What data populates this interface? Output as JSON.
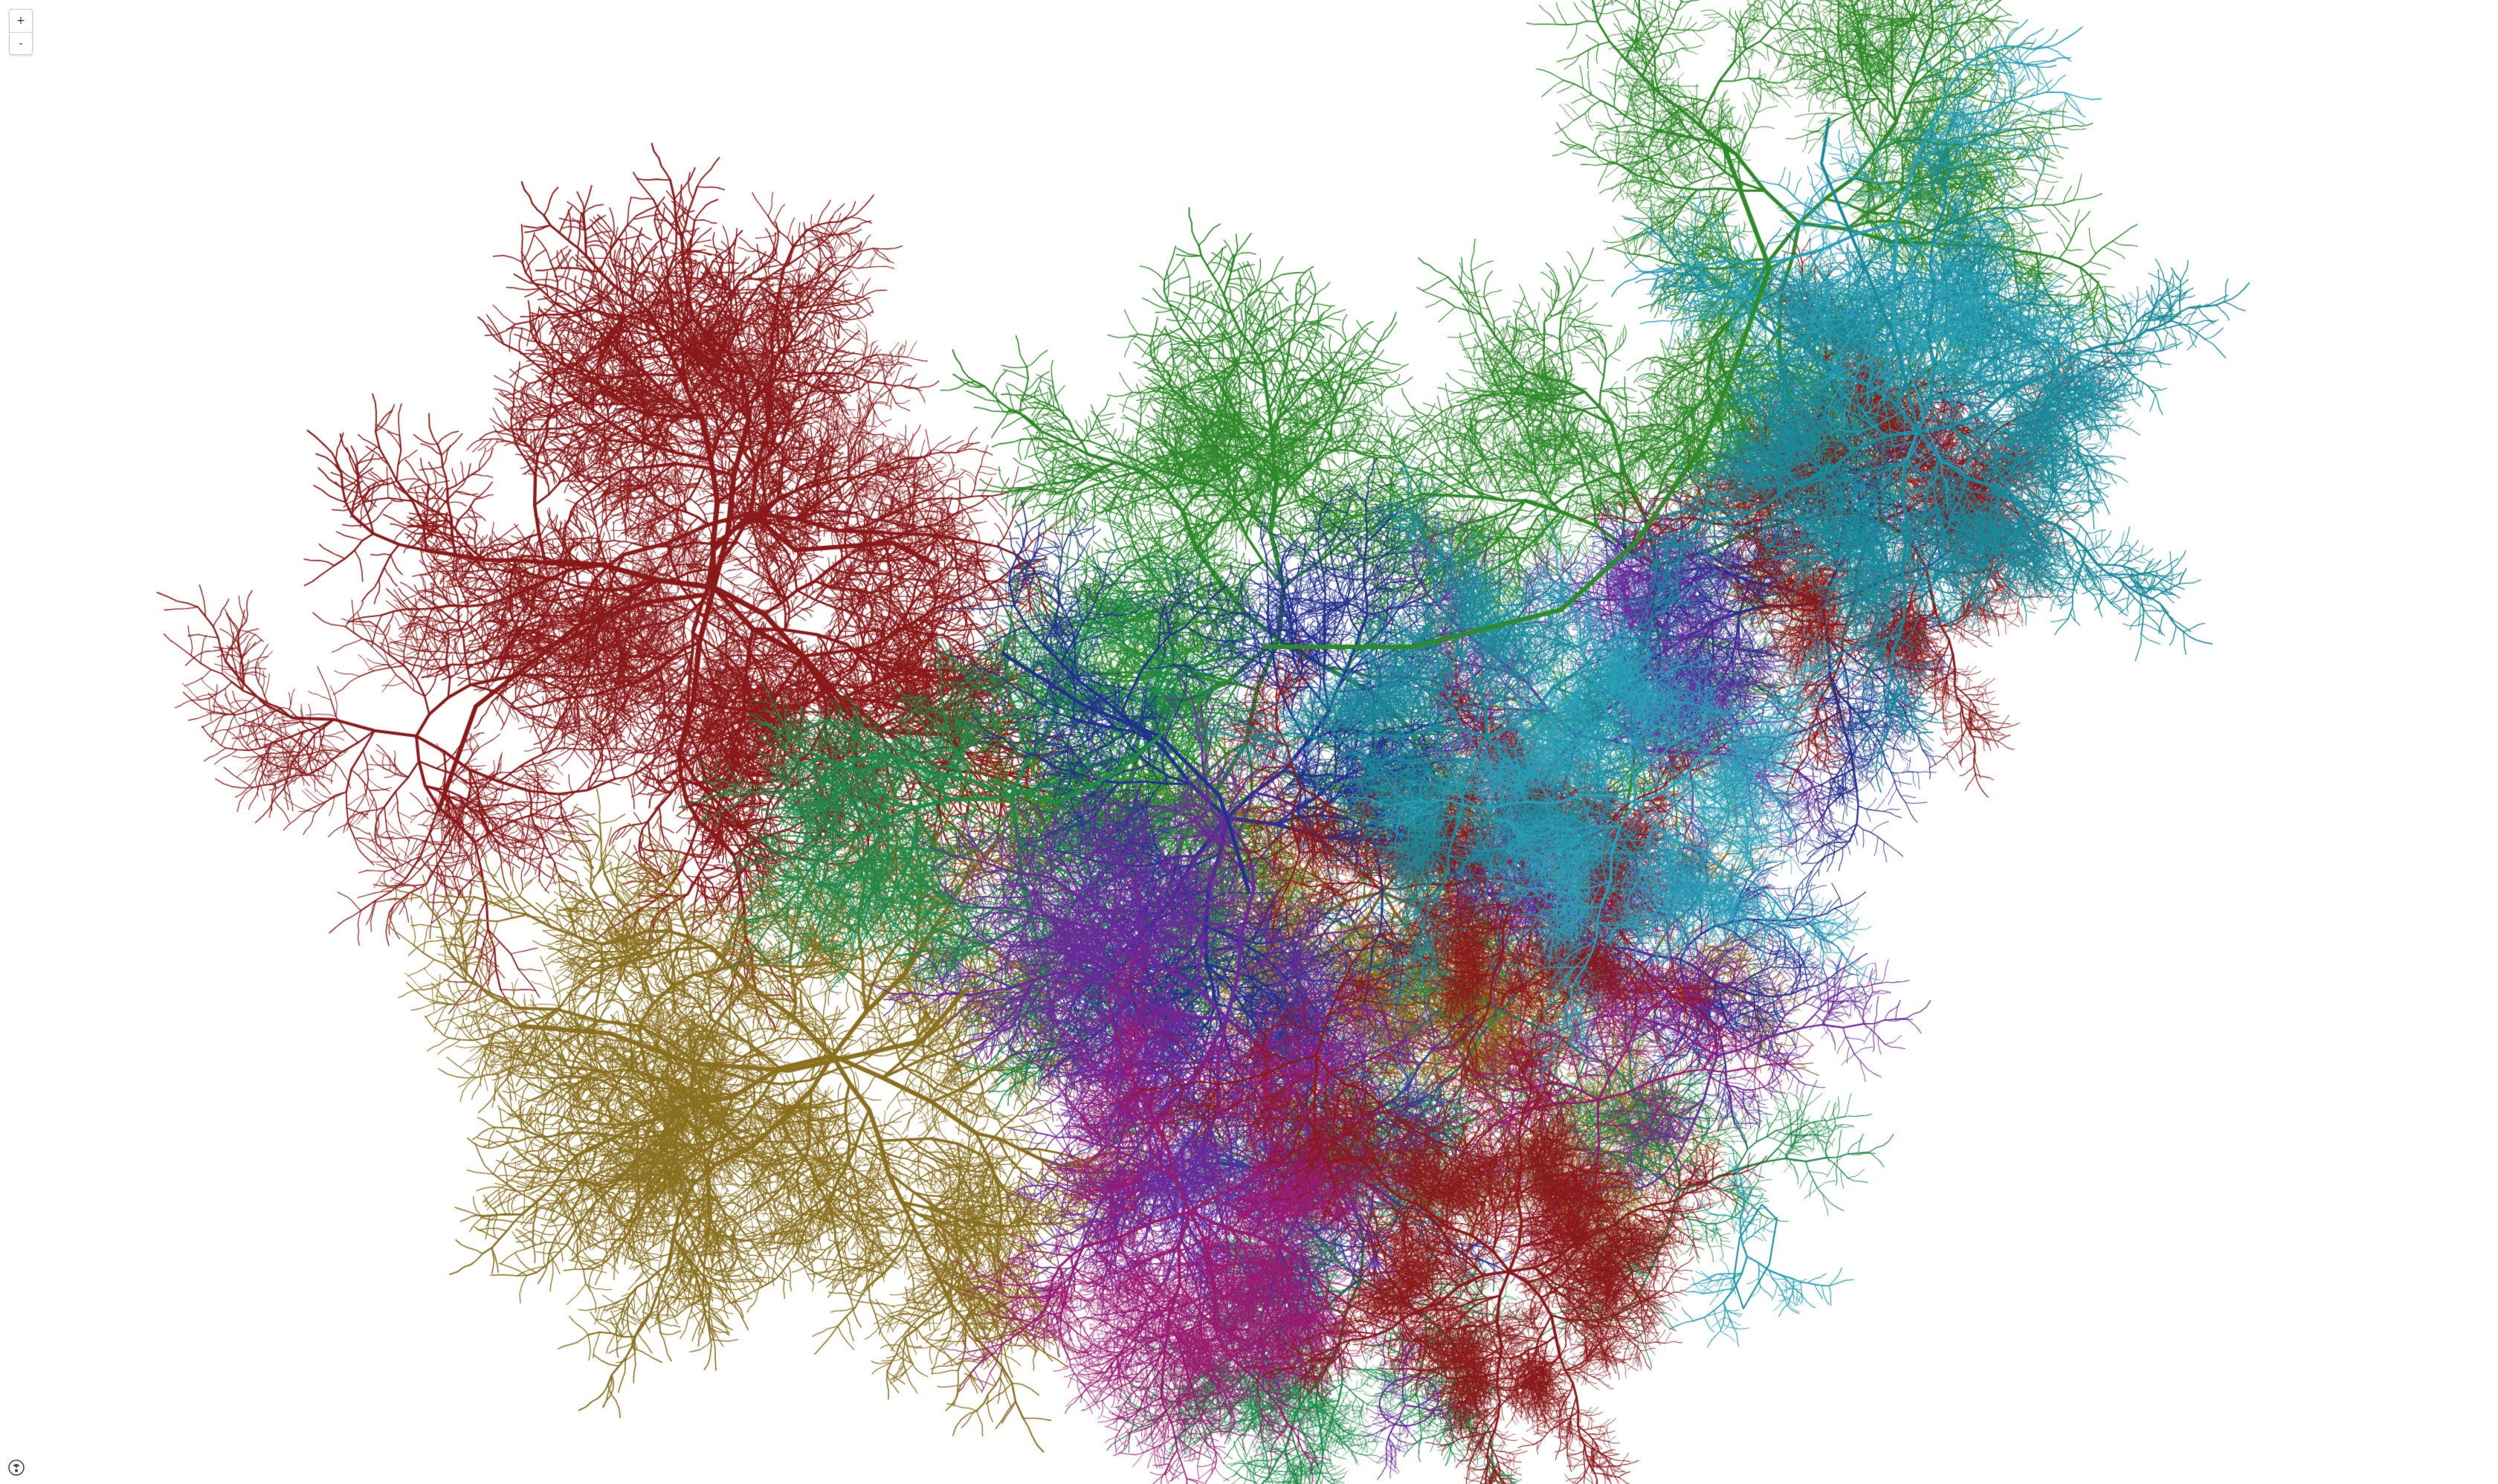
{
  "map": {
    "background": "#ffffff",
    "palette": {
      "crimson": "#8b1a1a",
      "olive": "#8a7020",
      "green": "#2f8a2a",
      "forest": "#1f8a4a",
      "navy": "#22308f",
      "purple": "#6a2a9a",
      "magenta": "#9a1a70",
      "teal": "#1a8a9a",
      "cyan": "#2aa0b8",
      "blue": "#2a3aa0",
      "olive2": "#8a6a20"
    }
  },
  "controls": {
    "zoom_in_label": "+",
    "zoom_out_label": "-"
  },
  "icons": {
    "zoom_in": "plus-icon",
    "zoom_out": "minus-icon",
    "attribution": "logo-icon"
  }
}
